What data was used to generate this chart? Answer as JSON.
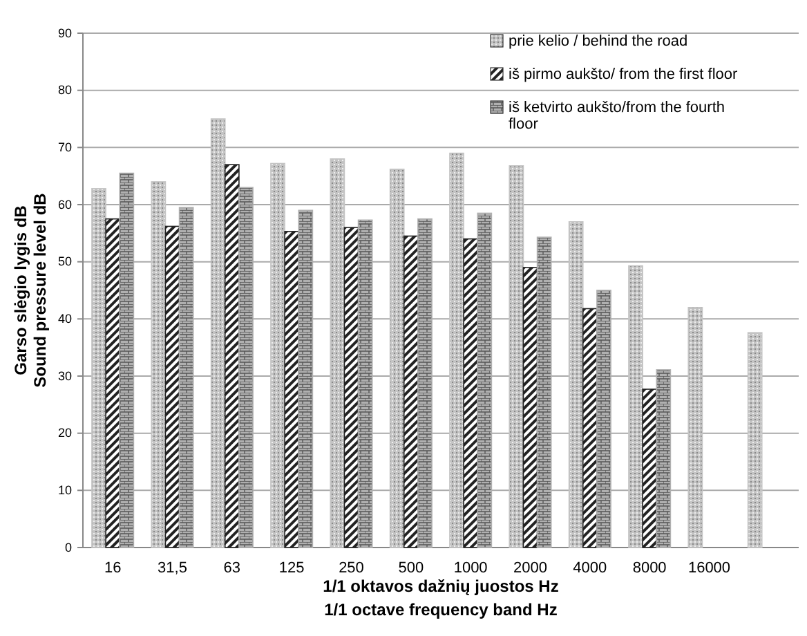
{
  "chart_data": {
    "type": "bar",
    "xlabel": "1/1 oktavos dažnių juostos Hz\n1/1 octave frequency band Hz",
    "ylabel": "Garso slėgio lygis  dB\nSound pressure level dB",
    "categories": [
      "16",
      "31,5",
      "63",
      "125",
      "250",
      "500",
      "1000",
      "2000",
      "4000",
      "8000",
      "16000",
      null
    ],
    "series": [
      {
        "name": "prie kelio / behind the road",
        "color": "#c4c4c4",
        "values": [
          62.8,
          64,
          75,
          67.2,
          68,
          66.2,
          69,
          66.8,
          57,
          49.3,
          42,
          37.6
        ]
      },
      {
        "name": "iš pirmo aukšto/ from the first floor",
        "color": "#222222",
        "values": [
          57.5,
          56.2,
          67,
          55.3,
          56,
          54.5,
          54,
          49,
          41.8,
          27.7,
          null,
          null
        ]
      },
      {
        "name": "iš ketvirto aukšto/from the fourth floor",
        "color": "#b0b0b0",
        "values": [
          65.5,
          59.5,
          63,
          59,
          57.3,
          57.5,
          58.5,
          54.3,
          45,
          31.1,
          null,
          null
        ]
      }
    ],
    "ylim": [
      0,
      90
    ],
    "yticks": [
      0,
      10,
      20,
      30,
      40,
      50,
      60,
      70,
      80,
      90
    ],
    "grid": "y",
    "legend": "top right"
  }
}
